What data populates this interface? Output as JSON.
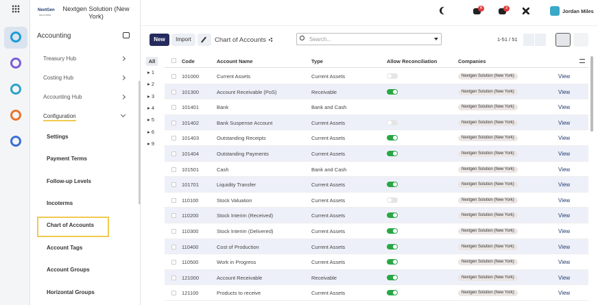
{
  "header": {
    "logo": "NextGen",
    "logo_sub": "SOLUTIONS",
    "company": "Nextgen Solution (New York)",
    "badges": [
      "6",
      "3"
    ],
    "user": "Jordan Miles"
  },
  "sidebar": {
    "title": "Accounting",
    "items": [
      {
        "label": "Treasury Hub",
        "chevron": "right"
      },
      {
        "label": "Costing Hub",
        "chevron": "right"
      },
      {
        "label": "Accounting Hub",
        "chevron": "right"
      },
      {
        "label": "Configuration",
        "chevron": "down"
      },
      {
        "label": "Settings"
      },
      {
        "label": "Payment Terms"
      },
      {
        "label": "Follow-up Levels"
      },
      {
        "label": "Incoterms"
      },
      {
        "label": "Chart of Accounts"
      },
      {
        "label": "Account Tags"
      },
      {
        "label": "Account Groups"
      },
      {
        "label": "Horizontal Groups"
      }
    ]
  },
  "toolbar": {
    "new": "New",
    "import": "Import",
    "title": "Chart of Accounts",
    "search": "Search...",
    "pager": "1-51 / 51"
  },
  "filter": {
    "all": "All",
    "groups": [
      "1",
      "2",
      "3",
      "4",
      "5",
      "6",
      "9"
    ]
  },
  "table": {
    "columns": [
      "Code",
      "Account Name",
      "Type",
      "Allow Reconciliation",
      "Companies"
    ],
    "action": "View",
    "rows": [
      [
        "101000",
        "Current Assets",
        "Current Assets",
        false,
        "Nextgen Solution (New York)"
      ],
      [
        "101300",
        "Account Receivable (PoS)",
        "Receivable",
        true,
        "Nextgen Solution (New York)"
      ],
      [
        "101401",
        "Bank",
        "Bank and Cash",
        null,
        "Nextgen Solution (New York)"
      ],
      [
        "101402",
        "Bank Suspense Account",
        "Current Assets",
        false,
        "Nextgen Solution (New York)"
      ],
      [
        "101403",
        "Outstanding Receipts",
        "Current Assets",
        true,
        "Nextgen Solution (New York)"
      ],
      [
        "101404",
        "Outstanding Payments",
        "Current Assets",
        true,
        "Nextgen Solution (New York)"
      ],
      [
        "101501",
        "Cash",
        "Bank and Cash",
        null,
        "Nextgen Solution (New York)"
      ],
      [
        "101701",
        "Liquidity Transfer",
        "Current Assets",
        true,
        "Nextgen Solution (New York)"
      ],
      [
        "110100",
        "Stock Valuation",
        "Current Assets",
        false,
        "Nextgen Solution (New York)"
      ],
      [
        "110200",
        "Stock Interim (Received)",
        "Current Assets",
        true,
        "Nextgen Solution (New York)"
      ],
      [
        "110300",
        "Stock Interim (Delivered)",
        "Current Assets",
        true,
        "Nextgen Solution (New York)"
      ],
      [
        "110400",
        "Cost of Production",
        "Current Assets",
        true,
        "Nextgen Solution (New York)"
      ],
      [
        "110500",
        "Work in Progress",
        "Current Assets",
        true,
        "Nextgen Solution (New York)"
      ],
      [
        "121000",
        "Account Receivable",
        "Receivable",
        true,
        "Nextgen Solution (New York)"
      ],
      [
        "121100",
        "Products to receive",
        "Current Assets",
        true,
        "Nextgen Solution (New York)"
      ]
    ]
  }
}
